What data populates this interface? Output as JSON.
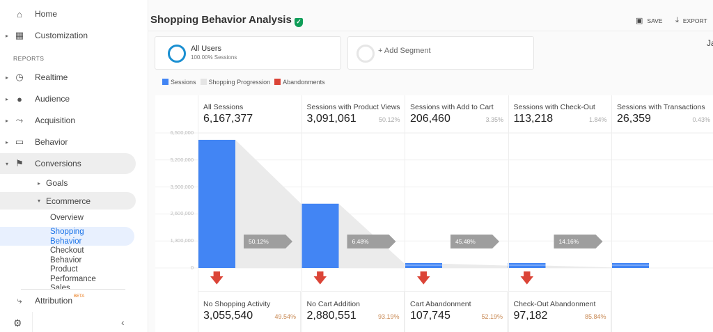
{
  "sidebar": {
    "items": [
      {
        "label": "Home",
        "icon": "home-icon"
      },
      {
        "label": "Customization",
        "icon": "dashboard-icon"
      },
      {
        "label": "Realtime",
        "icon": "clock-icon"
      },
      {
        "label": "Audience",
        "icon": "person-icon"
      },
      {
        "label": "Acquisition",
        "icon": "acquisition-icon"
      },
      {
        "label": "Behavior",
        "icon": "behavior-icon"
      },
      {
        "label": "Conversions",
        "icon": "flag-icon"
      }
    ],
    "section": "REPORTS",
    "goals": "Goals",
    "ecommerce": "Ecommerce",
    "sub": [
      "Overview",
      "Shopping Behavior",
      "Checkout Behavior",
      "Product Performance",
      "Sales"
    ],
    "attribution": "Attribution",
    "beta": "BETA"
  },
  "header": {
    "title": "Shopping Behavior Analysis",
    "save": "SAVE",
    "export": "EXPORT",
    "date_partial": "Ja"
  },
  "segments": {
    "all_users": "All Users",
    "all_users_sub": "100.00% Sessions",
    "add": "+ Add Segment"
  },
  "legend": [
    {
      "label": "Sessions",
      "color": "#4285f4"
    },
    {
      "label": "Shopping Progression",
      "color": "#e5e5e5"
    },
    {
      "label": "Abandonments",
      "color": "#db4437"
    }
  ],
  "chart_data": {
    "type": "bar",
    "ylim": [
      0,
      6500000
    ],
    "yticks": [
      "6,500,000",
      "5,200,000",
      "3,900,000",
      "2,600,000",
      "1,300,000",
      "0"
    ],
    "stages": [
      {
        "label": "All Sessions",
        "value": 6167377,
        "display": "6,167,377",
        "pct": ""
      },
      {
        "label": "Sessions with Product Views",
        "value": 3091061,
        "display": "3,091,061",
        "pct": "50.12%"
      },
      {
        "label": "Sessions with Add to Cart",
        "value": 206460,
        "display": "206,460",
        "pct": "3.35%"
      },
      {
        "label": "Sessions with Check-Out",
        "value": 113218,
        "display": "113,218",
        "pct": "1.84%"
      },
      {
        "label": "Sessions with Transactions",
        "value": 26359,
        "display": "26,359",
        "pct": "0.43%"
      }
    ],
    "progression": [
      "50.12%",
      "6.48%",
      "45.48%",
      "14.16%"
    ],
    "abandonments": [
      {
        "label": "No Shopping Activity",
        "display": "3,055,540",
        "pct": "49.54%"
      },
      {
        "label": "No Cart Addition",
        "display": "2,880,551",
        "pct": "93.19%"
      },
      {
        "label": "Cart Abandonment",
        "display": "107,745",
        "pct": "52.19%"
      },
      {
        "label": "Check-Out Abandonment",
        "display": "97,182",
        "pct": "85.84%"
      }
    ]
  }
}
